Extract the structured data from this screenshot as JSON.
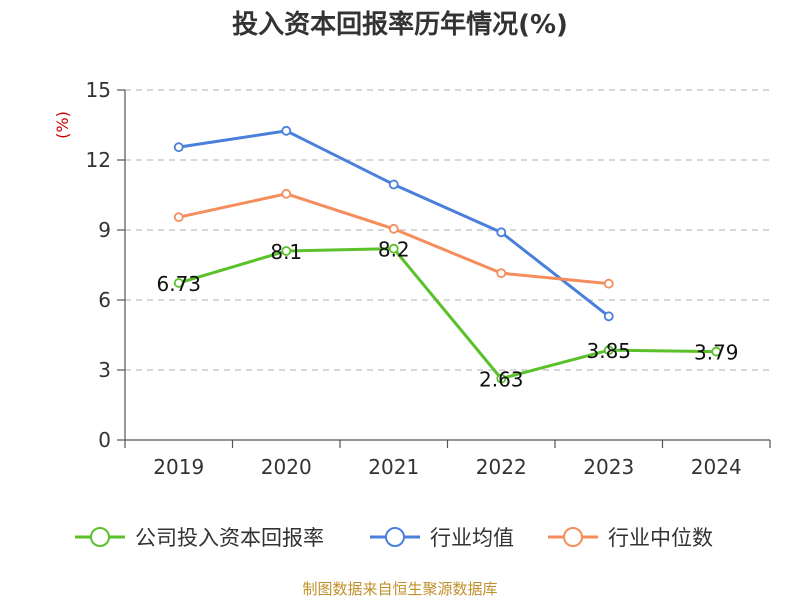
{
  "chart_data": {
    "type": "line",
    "title": "投入资本回报率历年情况(%)",
    "ylabel": "(%)",
    "xlabel": "",
    "ylim": [
      0,
      15
    ],
    "yticks": [
      0,
      3,
      6,
      9,
      12,
      15
    ],
    "grid": true,
    "legend_position": "bottom",
    "categories": [
      "2019",
      "2020",
      "2021",
      "2022",
      "2023",
      "2024"
    ],
    "series": [
      {
        "name": "公司投入资本回报率",
        "color": "#5ac12a",
        "values": [
          6.73,
          8.1,
          8.2,
          2.63,
          3.85,
          3.79
        ],
        "labels": [
          "6.73",
          "8.1",
          "8.2",
          "2.63",
          "3.85",
          "3.79"
        ]
      },
      {
        "name": "行业均值",
        "color": "#4a7fdc",
        "values": [
          12.55,
          13.25,
          10.95,
          8.9,
          5.3,
          null
        ]
      },
      {
        "name": "行业中位数",
        "color": "#f58d5c",
        "values": [
          9.55,
          10.55,
          9.05,
          7.15,
          6.7,
          null
        ]
      }
    ]
  },
  "source": "制图数据来自恒生聚源数据库"
}
